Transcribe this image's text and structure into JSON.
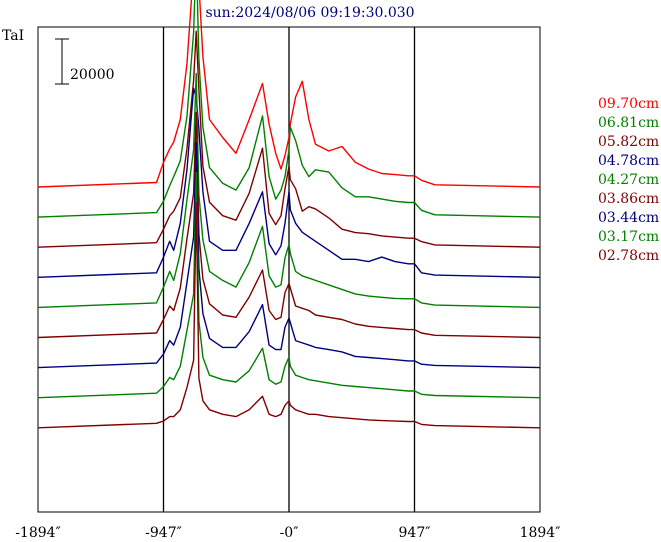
{
  "chart_data": {
    "type": "line",
    "title": "sun:2024/08/06 09:19:30.030",
    "ylabel": "TaI",
    "scale_bar_label": "20000",
    "scale_bar_value": 20000,
    "x_ticks": [
      {
        "value": -1894,
        "label": "-1894″"
      },
      {
        "value": -947,
        "label": "-947″"
      },
      {
        "value": 0,
        "label": "-0″"
      },
      {
        "value": 947,
        "label": "947″"
      },
      {
        "value": 1894,
        "label": "1894″"
      }
    ],
    "xlim": [
      -1894,
      1894
    ],
    "vertical_guides": [
      -947,
      0,
      947
    ],
    "grid": false,
    "legend_position": "right",
    "x": [
      -1894,
      -1000,
      -947,
      -900,
      -870,
      -820,
      -770,
      -720,
      -700,
      -680,
      -650,
      -600,
      -500,
      -400,
      -300,
      -200,
      -150,
      -100,
      -60,
      -30,
      0,
      10,
      50,
      100,
      150,
      200,
      300,
      400,
      500,
      600,
      700,
      800,
      900,
      947,
      1000,
      1100,
      1894
    ],
    "series": [
      {
        "name": "09.70cm",
        "color": "#ff0000",
        "values": [
          0,
          2000,
          11000,
          17000,
          20000,
          30000,
          55000,
          97000,
          120000,
          90000,
          58000,
          30000,
          22000,
          15000,
          30000,
          46000,
          28000,
          15000,
          8000,
          14000,
          22000,
          28000,
          40000,
          47000,
          30000,
          19000,
          16000,
          18000,
          11000,
          8000,
          6000,
          5500,
          5000,
          5000,
          3000,
          1000,
          0
        ]
      },
      {
        "name": "06.81cm",
        "color": "#008000",
        "values": [
          0,
          2000,
          7000,
          14000,
          18000,
          25000,
          45000,
          82000,
          118000,
          70000,
          40000,
          22000,
          15000,
          12000,
          22000,
          45000,
          18000,
          8000,
          12000,
          18000,
          30000,
          40000,
          34000,
          23000,
          18000,
          21000,
          20000,
          13000,
          9000,
          9000,
          8000,
          7000,
          6500,
          6500,
          3000,
          1000,
          0
        ]
      },
      {
        "name": "05.82cm",
        "color": "#800000",
        "values": [
          0,
          2000,
          8000,
          14000,
          16000,
          22000,
          44000,
          74000,
          96000,
          70000,
          36000,
          20000,
          14000,
          12000,
          24000,
          44000,
          15000,
          10000,
          14000,
          26000,
          36000,
          30000,
          26000,
          16000,
          18000,
          17000,
          13000,
          8000,
          6500,
          6000,
          5000,
          4500,
          4000,
          4000,
          2500,
          1000,
          0
        ]
      },
      {
        "name": "04.78cm",
        "color": "#000080",
        "values": [
          0,
          2000,
          9000,
          16000,
          12000,
          24000,
          48000,
          84000,
          80000,
          66000,
          38000,
          16000,
          12000,
          12000,
          24000,
          38000,
          15000,
          10000,
          14000,
          24000,
          38000,
          30000,
          24000,
          20000,
          18000,
          16000,
          12000,
          8000,
          8000,
          7000,
          9000,
          7000,
          6000,
          6000,
          2000,
          1000,
          0
        ]
      },
      {
        "name": "04.27cm",
        "color": "#008000",
        "values": [
          0,
          2000,
          9000,
          16000,
          12000,
          24000,
          48000,
          70000,
          104000,
          50000,
          30000,
          16000,
          12000,
          9000,
          20000,
          36000,
          14000,
          9000,
          10000,
          22000,
          28000,
          24000,
          16000,
          14000,
          13000,
          12000,
          10000,
          8000,
          6000,
          5000,
          4500,
          4000,
          3800,
          3800,
          2000,
          1000,
          0
        ]
      },
      {
        "name": "03.86cm",
        "color": "#800000",
        "values": [
          0,
          2000,
          8000,
          14000,
          12000,
          22000,
          44000,
          64000,
          100000,
          46000,
          26000,
          15000,
          10000,
          9000,
          18000,
          30000,
          12000,
          8000,
          9000,
          20000,
          24000,
          22000,
          14000,
          13000,
          12000,
          10000,
          9000,
          8000,
          6000,
          5000,
          4500,
          4000,
          3500,
          3500,
          2000,
          1000,
          0
        ]
      },
      {
        "name": "03.44cm",
        "color": "#000080",
        "values": [
          0,
          2000,
          6000,
          12000,
          10000,
          18000,
          38000,
          58000,
          100000,
          44000,
          24000,
          13000,
          9000,
          9000,
          16000,
          28000,
          10000,
          8000,
          8000,
          18000,
          22000,
          20000,
          12000,
          11000,
          10000,
          9000,
          8000,
          7000,
          5000,
          4500,
          4000,
          3500,
          3000,
          3000,
          1500,
          1000,
          0
        ]
      },
      {
        "name": "03.17cm",
        "color": "#008000",
        "values": [
          0,
          2000,
          5000,
          9000,
          8000,
          14000,
          30000,
          46000,
          100000,
          34000,
          18000,
          10000,
          8000,
          7000,
          12000,
          22000,
          8000,
          6000,
          7000,
          14000,
          18000,
          14000,
          10000,
          9000,
          8000,
          7500,
          6500,
          5500,
          5000,
          4500,
          4000,
          3500,
          3000,
          3000,
          1500,
          1000,
          0
        ]
      },
      {
        "name": "02.78cm",
        "color": "#800000",
        "values": [
          0,
          2000,
          3000,
          5000,
          5000,
          8000,
          18000,
          30000,
          100000,
          22000,
          12000,
          8000,
          6000,
          5000,
          8000,
          14000,
          6000,
          5000,
          6000,
          10000,
          12000,
          10000,
          8000,
          7000,
          6000,
          6000,
          5000,
          4500,
          4000,
          3500,
          3200,
          3000,
          2800,
          2800,
          1500,
          1000,
          0
        ]
      }
    ]
  }
}
